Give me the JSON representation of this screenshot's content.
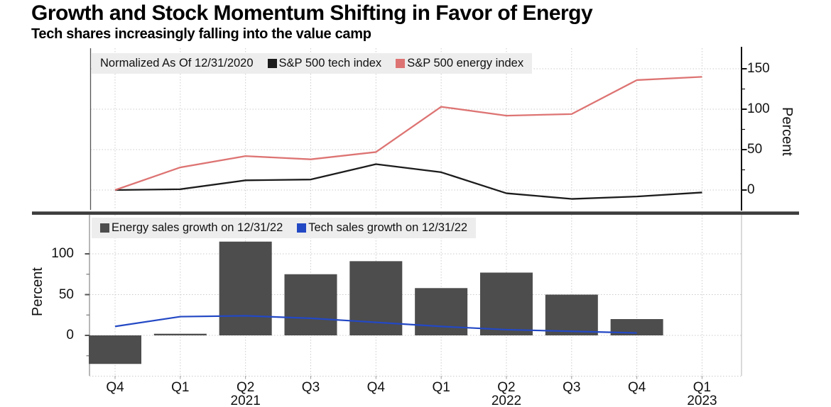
{
  "page": {
    "title": "Growth and Stock Momentum Shifting in Favor of Energy",
    "subtitle": "Tech shares increasingly falling into the value camp"
  },
  "colors": {
    "tech_index_line": "#1c1c1c",
    "energy_index_line": "#dd7473",
    "energy_bar": "#4d4d4d",
    "tech_sales_line": "#2348c4",
    "grid": "#cbcbcb",
    "divider": "#3c3c3c",
    "axis_dark": "#111111",
    "axis_light": "#888888",
    "legend_bg": "#ededed"
  },
  "chart_data": [
    {
      "type": "line",
      "note": "Normalized As Of 12/31/2020",
      "categories": [
        "Q4 2020",
        "Q1 2021",
        "Q2 2021",
        "Q3 2021",
        "Q4 2021",
        "Q1 2022",
        "Q2 2022",
        "Q3 2022",
        "Q4 2022",
        "Q1 2023"
      ],
      "series": [
        {
          "name": "S&P 500 tech index",
          "color": "#1c1c1c",
          "values": [
            0,
            1,
            12,
            13,
            32,
            22,
            -4,
            -11,
            -8,
            -3
          ]
        },
        {
          "name": "S&P 500 energy index",
          "color": "#dd7473",
          "values": [
            0,
            28,
            42,
            38,
            47,
            103,
            92,
            94,
            136,
            140
          ]
        }
      ],
      "ylabel": "Percent",
      "yticks": [
        0,
        50,
        100,
        150
      ],
      "yminors": [
        25,
        75,
        125
      ],
      "ylim": [
        -25,
        175
      ],
      "legend_position": "top-left",
      "grid": true
    },
    {
      "type": "bar",
      "categories": [
        "Q4 2020",
        "Q1 2021",
        "Q2 2021",
        "Q3 2021",
        "Q4 2021",
        "Q1 2022",
        "Q2 2022",
        "Q3 2022",
        "Q4 2022",
        "Q1 2023"
      ],
      "series": [
        {
          "name": "Energy sales growth on 12/31/22",
          "type": "bar",
          "color": "#4d4d4d",
          "values": [
            -35,
            2,
            115,
            75,
            91,
            58,
            77,
            50,
            20,
            null
          ]
        },
        {
          "name": "Tech sales growth on 12/31/22",
          "type": "line",
          "color": "#2348c4",
          "values": [
            11,
            23,
            24,
            21,
            16,
            11,
            7,
            5,
            3,
            null
          ]
        }
      ],
      "ylabel": "Percent",
      "yticks": [
        0,
        50,
        100
      ],
      "yminors": [
        25,
        75,
        -25
      ],
      "grid_extra": [
        -50
      ],
      "ylim": [
        -50,
        125
      ],
      "legend_position": "top-left",
      "grid": true
    }
  ],
  "x_axis": {
    "quarter_labels": [
      "Q4",
      "Q1",
      "Q2",
      "Q3",
      "Q4",
      "Q1",
      "Q2",
      "Q3",
      "Q4",
      "Q1"
    ],
    "year_labels": [
      {
        "text": "2021",
        "index": 2
      },
      {
        "text": "2022",
        "index": 6
      },
      {
        "text": "2023",
        "index": 9
      }
    ]
  }
}
